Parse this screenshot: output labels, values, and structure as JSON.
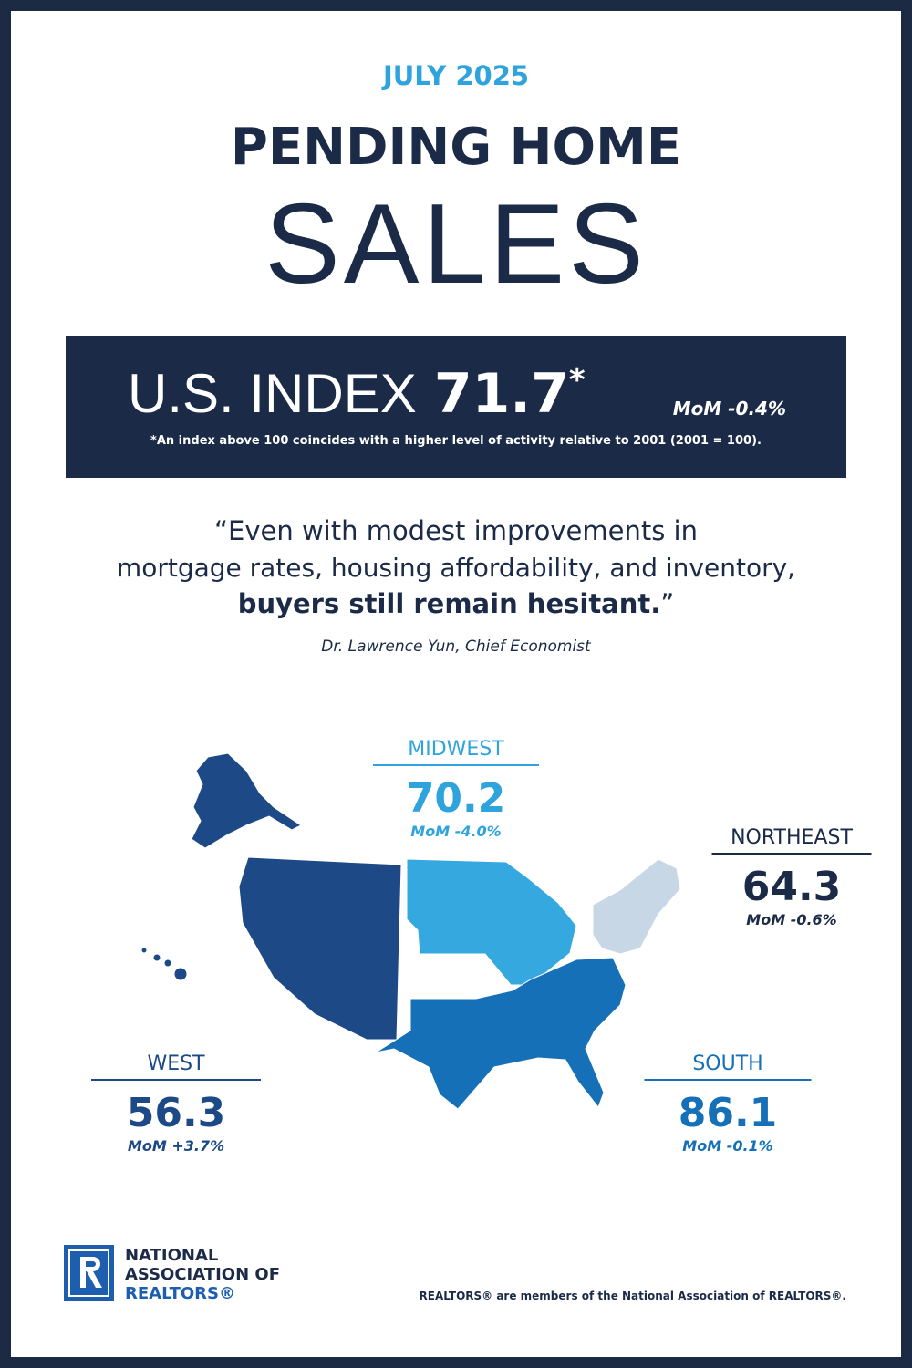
{
  "header": {
    "date": "JULY 2025",
    "title_line1": "PENDING HOME",
    "title_line2": "SALES"
  },
  "index_banner": {
    "label": "U.S. INDEX",
    "value": 71.7,
    "asterisk": "*",
    "mom": "MoM -0.4%",
    "footnote": "*An index above 100 coincides with a higher level of activity relative to 2001 (2001 = 100)."
  },
  "quote": {
    "line1": "“Even with modest improvements in",
    "line2": "mortgage rates, housing affordability, and inventory,",
    "line3_bold": "buyers still remain hesitant.",
    "line3_end": "”",
    "attribution": "Dr. Lawrence Yun, Chief Economist"
  },
  "regions": [
    {
      "name": "MIDWEST",
      "index": 70.2,
      "mom": "MoM -4.0%"
    },
    {
      "name": "NORTHEAST",
      "index": 64.3,
      "mom": "MoM -0.6%"
    },
    {
      "name": "WEST",
      "index": 56.3,
      "mom": "MoM +3.7%"
    },
    {
      "name": "SOUTH",
      "index": 86.1,
      "mom": "MoM -0.1%"
    }
  ],
  "footer": {
    "logo_line1": "NATIONAL",
    "logo_line2": "ASSOCIATION OF",
    "logo_line3": "REALTORS®",
    "disclaimer": "REALTORS® are members of the National Association of REALTORS®."
  }
}
